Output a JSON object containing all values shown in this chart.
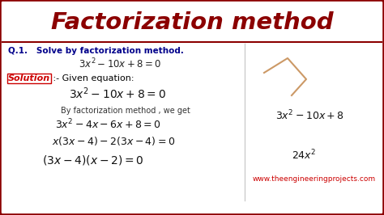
{
  "title": "Factorization method",
  "title_color": "#8B0000",
  "title_bg_color": "#ffffff",
  "body_bg_color": "#ffffff",
  "q1_text": "Q.1.   Solve by factorization method.",
  "q1_color": "#00008B",
  "eq0": "$3x^2 -10x+8=0$",
  "solution_label": "Solution",
  "solution_colon": " :- Given equation:",
  "solution_color": "#cc0000",
  "solution_text_color": "#000000",
  "eq1": "$3x^2 - 10x + 8 = 0$",
  "by_factor_text": "By factorization method , we get",
  "eq2": "$3x^2 -4x-6x+8=0$",
  "eq3": "$x(3x - 4) - 2(3x - 4) = 0$",
  "eq4": "$(3x-4)(x-2) = 0$",
  "website": "www.theengineeringprojects.com",
  "website_color": "#cc0000",
  "right_eq": "$3x^2 -10x+8$",
  "right_eq2": "$24x^2$",
  "divider_color": "#cccccc",
  "border_color": "#8B0000",
  "quad_color": "#cc9966"
}
